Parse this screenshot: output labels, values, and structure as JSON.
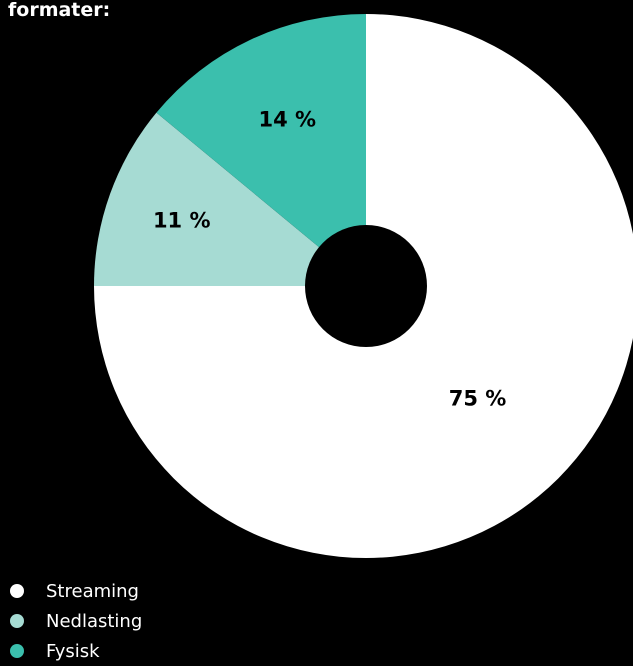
{
  "title": "formater:",
  "chart_data": {
    "type": "pie",
    "inner_hole": true,
    "slices": [
      {
        "name": "Streaming",
        "value": 75,
        "label": "75 %",
        "color": "#ffffff",
        "label_color": "#000000"
      },
      {
        "name": "Nedlasting",
        "value": 11,
        "label": "11 %",
        "color": "#a6dbd3",
        "label_color": "#000000"
      },
      {
        "name": "Fysisk",
        "value": 14,
        "label": "14 %",
        "color": "#3bbfad",
        "label_color": "#000000"
      }
    ],
    "legend_placement": "bottom-left"
  }
}
